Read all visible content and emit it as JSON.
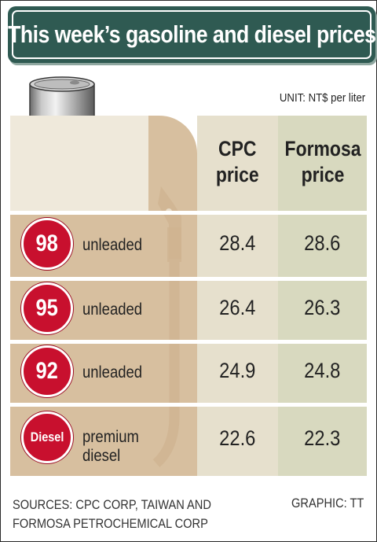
{
  "title": "This week’s gasoline and diesel prices",
  "unit": "UNIT: NT$ per liter",
  "chart_data": {
    "type": "table",
    "title": "This week’s gasoline and diesel prices",
    "unit": "UNIT: NT$ per liter",
    "columns": [
      "CPC\nprice",
      "Formosa\nprice"
    ],
    "rows": [
      {
        "grade": "98",
        "label": "unleaded",
        "cpc": "28.4",
        "formosa": "28.6"
      },
      {
        "grade": "95",
        "label": "unleaded",
        "cpc": "26.4",
        "formosa": "26.3"
      },
      {
        "grade": "92",
        "label": "unleaded",
        "cpc": "24.9",
        "formosa": "24.8"
      },
      {
        "grade": "Diesel",
        "label": "premium\ndiesel",
        "cpc": "22.6",
        "formosa": "22.3"
      }
    ]
  },
  "footer": {
    "sources": "SOURCES: CPC CORP, TAIWAN AND\nFORMOSA PETROCHEMICAL CORP",
    "credit": "GRAPHIC: TT"
  },
  "colors": {
    "title_bg": "#2f5a52",
    "badge_red": "#c8102e",
    "tan": "#d7bf9f"
  },
  "icons": [
    "oil-barrel-icon",
    "fuel-pump-icon"
  ]
}
